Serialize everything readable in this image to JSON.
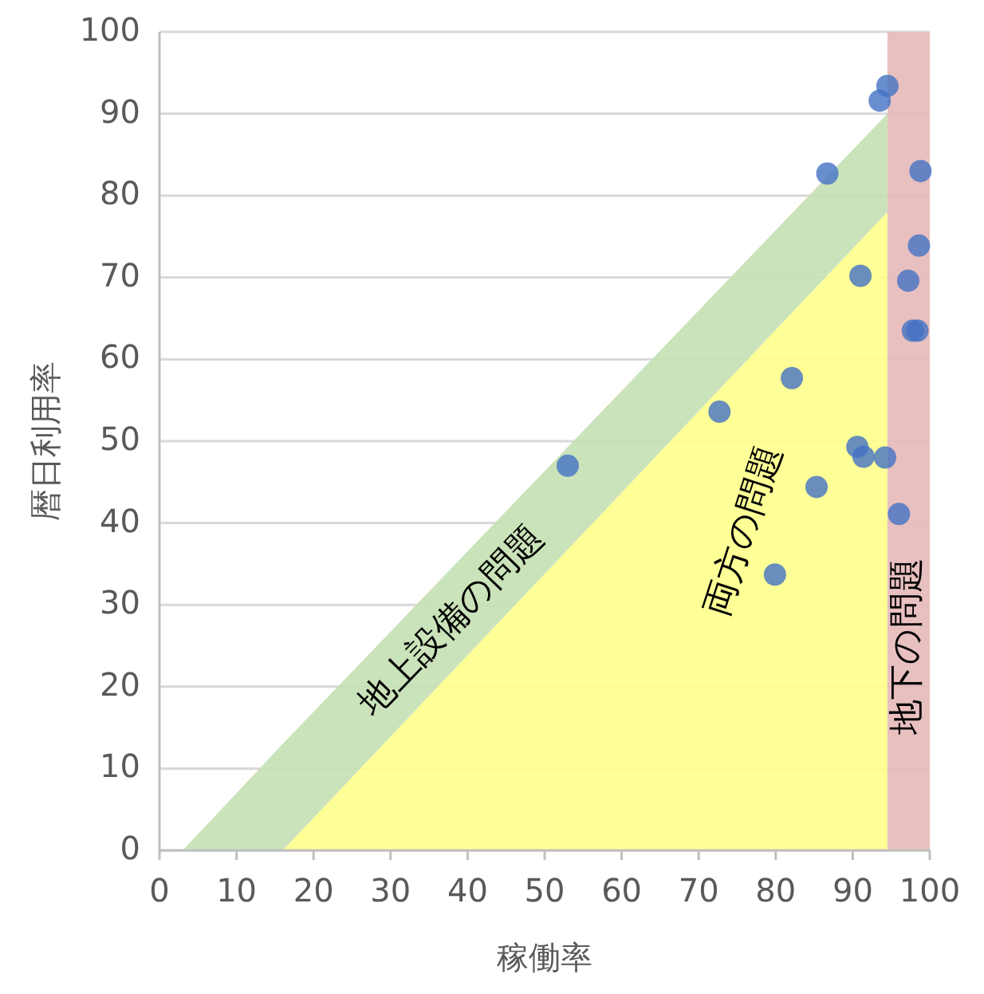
{
  "chart_data": {
    "type": "scatter",
    "xlabel": "稼働率",
    "ylabel": "暦日利用率",
    "xlim": [
      0,
      100
    ],
    "ylim": [
      0,
      100
    ],
    "xticks": [
      0,
      10,
      20,
      30,
      40,
      50,
      60,
      70,
      80,
      90,
      100
    ],
    "yticks": [
      0,
      10,
      20,
      30,
      40,
      50,
      60,
      70,
      80,
      90,
      100
    ],
    "grid": "y",
    "stacked": true,
    "series": [
      {
        "type": "area",
        "name": "両方の問題",
        "color": "#ffff8c",
        "marker": "none",
        "x": [
          3,
          16,
          94.5
        ],
        "values": [
          0,
          0,
          78
        ]
      },
      {
        "type": "area",
        "name": "地上設備の問題",
        "color": "#c5e0b3",
        "marker": "none",
        "x": [
          3,
          16,
          94.5
        ],
        "values": [
          0,
          13,
          12
        ]
      },
      {
        "color": "#4472c4",
        "marker": "circle",
        "x": [
          94.5,
          93.5,
          86.7,
          98.8,
          98.6,
          97.2,
          91.0,
          97.8,
          98.4,
          82.1,
          72.7,
          53.0,
          90.6,
          91.4,
          94.2,
          85.3,
          96.0,
          79.9
        ],
        "values": [
          93.4,
          91.6,
          82.7,
          83.0,
          73.9,
          69.6,
          70.2,
          63.5,
          63.5,
          57.7,
          53.6,
          47.0,
          49.3,
          48.1,
          48.0,
          44.4,
          41.1,
          33.7
        ]
      }
    ],
    "bands": [
      {
        "axis": "x",
        "from": 94.5,
        "to": 100,
        "label": "地下の問題",
        "color": "#e6b9b8"
      }
    ]
  }
}
